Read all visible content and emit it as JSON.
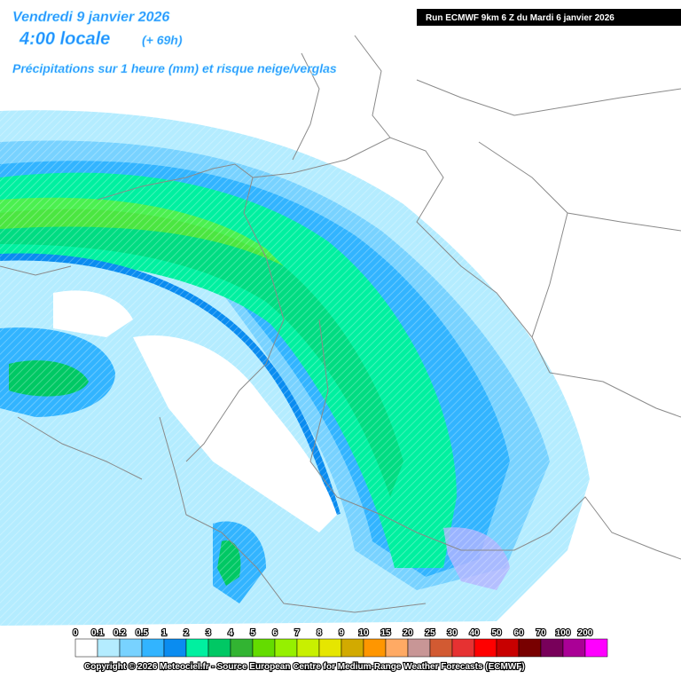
{
  "header": {
    "date": "Vendredi 9 janvier 2026",
    "time": "4:00 locale",
    "lead": "(+ 69h)",
    "subtitle": "Précipitations sur 1 heure (mm) et risque neige/verglas",
    "run": "Run ECMWF 9km 6 Z du Mardi 6 janvier 2026"
  },
  "legend": {
    "items": [
      {
        "label": "0",
        "color": "#ffffff"
      },
      {
        "label": "0.1",
        "color": "#b4ecff"
      },
      {
        "label": "0.2",
        "color": "#78d2ff"
      },
      {
        "label": "0.5",
        "color": "#32b4ff"
      },
      {
        "label": "1",
        "color": "#0a8cf0"
      },
      {
        "label": "2",
        "color": "#00f0a0"
      },
      {
        "label": "3",
        "color": "#00c864"
      },
      {
        "label": "4",
        "color": "#32b432"
      },
      {
        "label": "5",
        "color": "#64dc00"
      },
      {
        "label": "6",
        "color": "#96f000"
      },
      {
        "label": "7",
        "color": "#c8f000"
      },
      {
        "label": "8",
        "color": "#e6e600"
      },
      {
        "label": "9",
        "color": "#d2aa00"
      },
      {
        "label": "10",
        "color": "#ff9600"
      },
      {
        "label": "15",
        "color": "#ffaa64"
      },
      {
        "label": "20",
        "color": "#c89696"
      },
      {
        "label": "25",
        "color": "#d25a32"
      },
      {
        "label": "30",
        "color": "#e63232"
      },
      {
        "label": "40",
        "color": "#ff0000"
      },
      {
        "label": "50",
        "color": "#c80000"
      },
      {
        "label": "60",
        "color": "#780000"
      },
      {
        "label": "70",
        "color": "#78005a"
      },
      {
        "label": "100",
        "color": "#aa0096"
      },
      {
        "label": "200",
        "color": "#ff00ff"
      }
    ]
  },
  "footer": {
    "copyright": "Copyright © 2026 Meteociel.fr - Source European Centre for Medium-Range Weather Forecasts (ECMWF)"
  }
}
